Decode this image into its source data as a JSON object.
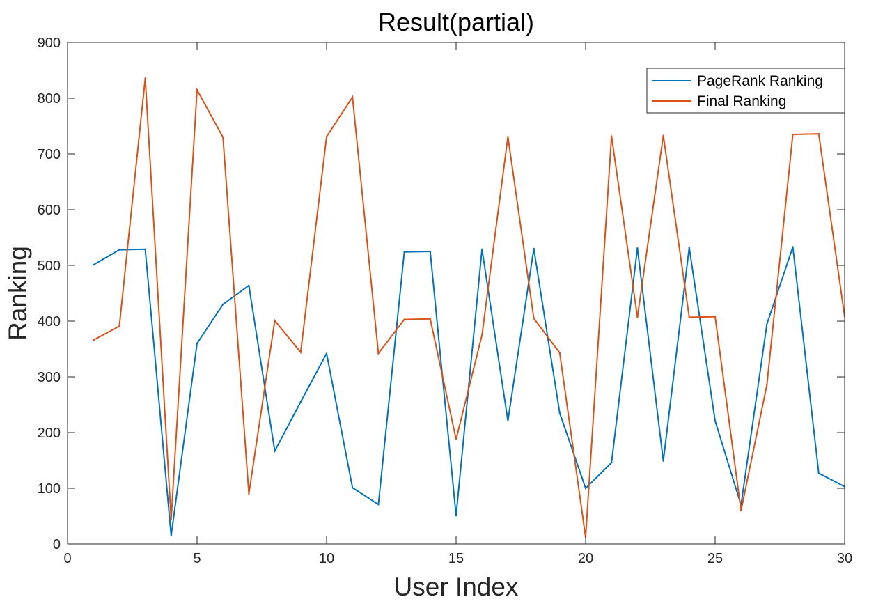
{
  "chart_data": {
    "type": "line",
    "title": "Result(partial)",
    "xlabel": "User Index",
    "ylabel": "Ranking",
    "xlim": [
      0,
      30
    ],
    "ylim": [
      0,
      900
    ],
    "xticks": [
      0,
      5,
      10,
      15,
      20,
      25,
      30
    ],
    "yticks": [
      0,
      100,
      200,
      300,
      400,
      500,
      600,
      700,
      800,
      900
    ],
    "grid": false,
    "legend_position": "top-right",
    "x": [
      1,
      2,
      3,
      4,
      5,
      6,
      7,
      8,
      9,
      10,
      11,
      12,
      13,
      14,
      15,
      16,
      17,
      18,
      19,
      20,
      21,
      22,
      23,
      24,
      25,
      26,
      27,
      28,
      29,
      30
    ],
    "series": [
      {
        "name": "PageRank Ranking",
        "color": "#0072BD",
        "values": [
          501,
          528,
          529,
          15,
          360,
          430,
          464,
          167,
          255,
          342,
          101,
          71,
          524,
          525,
          51,
          529,
          221,
          530,
          235,
          100,
          146,
          531,
          149,
          532,
          221,
          70,
          395,
          533,
          127,
          103
        ]
      },
      {
        "name": "Final Ranking",
        "color": "#D95319",
        "values": [
          366,
          391,
          836,
          44,
          815,
          730,
          90,
          401,
          344,
          731,
          802,
          342,
          403,
          404,
          188,
          375,
          731,
          405,
          343,
          12,
          732,
          407,
          733,
          407,
          408,
          60,
          286,
          735,
          736,
          408
        ]
      }
    ]
  }
}
